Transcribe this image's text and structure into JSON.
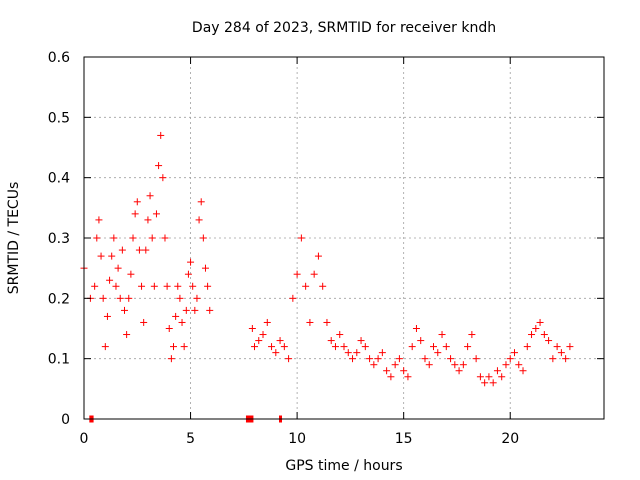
{
  "chart_data": {
    "type": "scatter",
    "title": "Day 284 of 2023, SRMTID for receiver kndh",
    "xlabel": "GPS time / hours",
    "ylabel": "SRMTID / TECUs",
    "xlim": [
      0,
      24.4
    ],
    "ylim": [
      0,
      0.6
    ],
    "xticks": [
      0,
      5,
      10,
      15,
      20
    ],
    "xtick_labels": [
      "0",
      "5",
      "10",
      "15",
      "20"
    ],
    "yticks": [
      0,
      0.1,
      0.2,
      0.3,
      0.4,
      0.5,
      0.6
    ],
    "ytick_labels": [
      "0",
      "0.1",
      "0.2",
      "0.3",
      "0.4",
      "0.5",
      "0.6"
    ],
    "grid": true,
    "marker": "+",
    "color": "#ff0000",
    "data_gaps_at_zero": [
      [
        0.25,
        0.45
      ],
      [
        7.6,
        7.95
      ],
      [
        9.15,
        9.25
      ]
    ],
    "series": [
      {
        "name": "SRMTID",
        "x": [
          0.0,
          0.3,
          0.5,
          0.6,
          0.7,
          0.8,
          0.9,
          1.0,
          1.1,
          1.2,
          1.3,
          1.4,
          1.5,
          1.6,
          1.7,
          1.8,
          1.9,
          2.0,
          2.1,
          2.2,
          2.3,
          2.4,
          2.5,
          2.6,
          2.7,
          2.8,
          2.9,
          3.0,
          3.1,
          3.2,
          3.3,
          3.4,
          3.5,
          3.6,
          3.7,
          3.8,
          3.9,
          4.0,
          4.1,
          4.2,
          4.3,
          4.4,
          4.5,
          4.6,
          4.7,
          4.8,
          4.9,
          5.0,
          5.1,
          5.2,
          5.3,
          5.4,
          5.5,
          5.6,
          5.7,
          5.8,
          5.9,
          7.9,
          8.0,
          8.2,
          8.4,
          8.6,
          8.8,
          9.0,
          9.2,
          9.4,
          9.6,
          9.8,
          10.0,
          10.2,
          10.4,
          10.6,
          10.8,
          11.0,
          11.2,
          11.4,
          11.6,
          11.8,
          12.0,
          12.2,
          12.4,
          12.6,
          12.8,
          13.0,
          13.2,
          13.4,
          13.6,
          13.8,
          14.0,
          14.2,
          14.4,
          14.6,
          14.8,
          15.0,
          15.2,
          15.4,
          15.6,
          15.8,
          16.0,
          16.2,
          16.4,
          16.6,
          16.8,
          17.0,
          17.2,
          17.4,
          17.6,
          17.8,
          18.0,
          18.2,
          18.4,
          18.6,
          18.8,
          19.0,
          19.2,
          19.4,
          19.6,
          19.8,
          20.0,
          20.2,
          20.4,
          20.6,
          20.8,
          21.0,
          21.2,
          21.4,
          21.6,
          21.8,
          22.0,
          22.2,
          22.4,
          22.6,
          22.8
        ],
        "y": [
          0.25,
          0.2,
          0.22,
          0.3,
          0.33,
          0.27,
          0.2,
          0.12,
          0.17,
          0.23,
          0.27,
          0.3,
          0.22,
          0.25,
          0.2,
          0.28,
          0.18,
          0.14,
          0.2,
          0.24,
          0.3,
          0.34,
          0.36,
          0.28,
          0.22,
          0.16,
          0.28,
          0.33,
          0.37,
          0.3,
          0.22,
          0.34,
          0.42,
          0.47,
          0.4,
          0.3,
          0.22,
          0.15,
          0.1,
          0.12,
          0.17,
          0.22,
          0.2,
          0.16,
          0.12,
          0.18,
          0.24,
          0.26,
          0.22,
          0.18,
          0.2,
          0.33,
          0.36,
          0.3,
          0.25,
          0.22,
          0.18,
          0.15,
          0.12,
          0.13,
          0.14,
          0.16,
          0.12,
          0.11,
          0.13,
          0.12,
          0.1,
          0.2,
          0.24,
          0.3,
          0.22,
          0.16,
          0.24,
          0.27,
          0.22,
          0.16,
          0.13,
          0.12,
          0.14,
          0.12,
          0.11,
          0.1,
          0.11,
          0.13,
          0.12,
          0.1,
          0.09,
          0.1,
          0.11,
          0.08,
          0.07,
          0.09,
          0.1,
          0.08,
          0.07,
          0.12,
          0.15,
          0.13,
          0.1,
          0.09,
          0.12,
          0.11,
          0.14,
          0.12,
          0.1,
          0.09,
          0.08,
          0.09,
          0.12,
          0.14,
          0.1,
          0.07,
          0.06,
          0.07,
          0.06,
          0.08,
          0.07,
          0.09,
          0.1,
          0.11,
          0.09,
          0.08,
          0.12,
          0.14,
          0.15,
          0.16,
          0.14,
          0.13,
          0.1,
          0.12,
          0.11,
          0.1,
          0.12
        ]
      }
    ]
  }
}
